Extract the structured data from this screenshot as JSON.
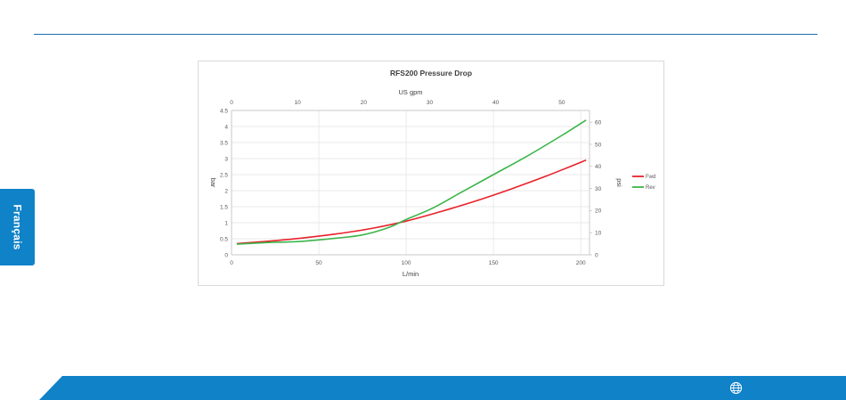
{
  "language_tab": {
    "label": "Français"
  },
  "footer": {
    "icon": "globe-icon"
  },
  "chart_data": {
    "type": "line",
    "title": "RFS200 Pressure Drop",
    "xlabel": "L/min",
    "x2label": "US gpm",
    "ylabel": "bar",
    "y2label": "psi",
    "xlim": [
      0,
      205
    ],
    "ylim": [
      0,
      4.5
    ],
    "x2lim": [
      0,
      54.2
    ],
    "y2lim": [
      0,
      65.3
    ],
    "xticks": [
      "0",
      "50",
      "100",
      "150",
      "200"
    ],
    "yticks": [
      "0",
      "0.5",
      "1",
      "1.5",
      "2",
      "2.5",
      "3",
      "3.5",
      "4",
      "4.5"
    ],
    "x2ticks": [
      "0",
      "10",
      "20",
      "30",
      "40",
      "50"
    ],
    "y2ticks": [
      "0",
      "10",
      "20",
      "30",
      "40",
      "50",
      "60"
    ],
    "grid": true,
    "legend_position": "right",
    "series": [
      {
        "name": "Fwd",
        "color": "#e8212a",
        "x": [
          3,
          20,
          40,
          60,
          80,
          100,
          120,
          140,
          160,
          180,
          203
        ],
        "y": [
          0.35,
          0.42,
          0.52,
          0.65,
          0.82,
          1.05,
          1.35,
          1.68,
          2.05,
          2.45,
          2.95
        ]
      },
      {
        "name": "Rev",
        "color": "#3cb54a",
        "x": [
          3,
          20,
          40,
          60,
          75,
          90,
          100,
          115,
          130,
          150,
          170,
          190,
          203
        ],
        "y": [
          0.33,
          0.38,
          0.42,
          0.52,
          0.62,
          0.85,
          1.1,
          1.45,
          1.9,
          2.5,
          3.1,
          3.75,
          4.2
        ]
      }
    ]
  }
}
